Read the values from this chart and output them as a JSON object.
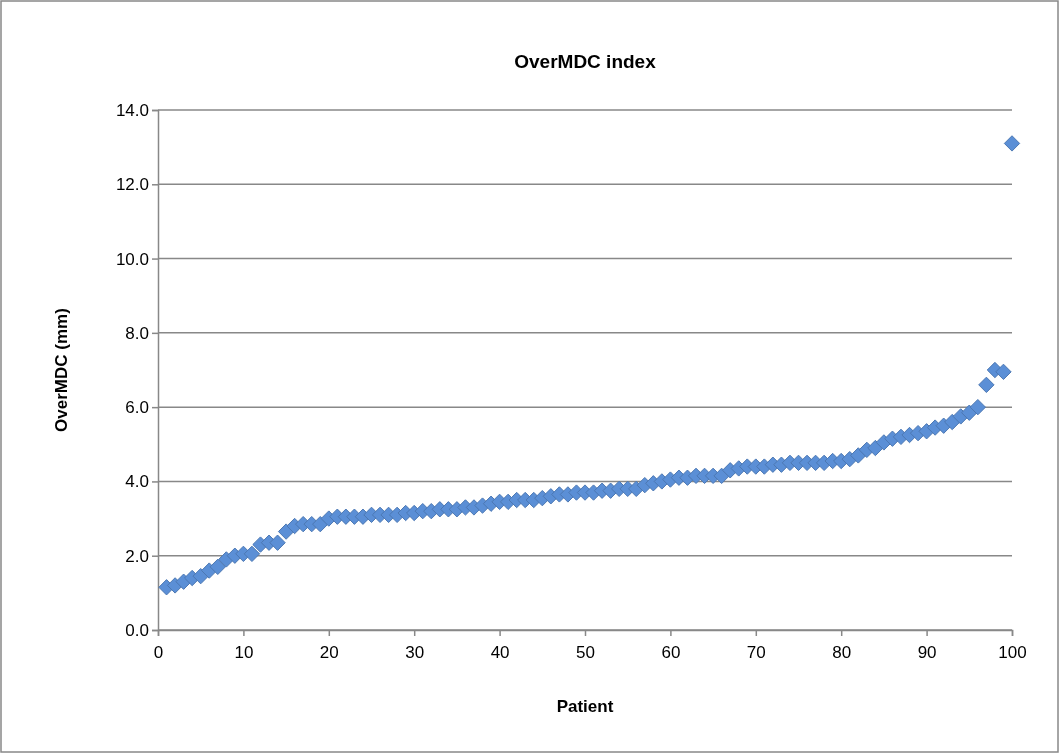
{
  "chart_data": {
    "type": "scatter",
    "title": "OverMDC index",
    "xlabel": "Patient",
    "ylabel": "OverMDC (mm)",
    "x": [
      1,
      2,
      3,
      4,
      5,
      6,
      7,
      8,
      9,
      10,
      11,
      12,
      13,
      14,
      15,
      16,
      17,
      18,
      19,
      20,
      21,
      22,
      23,
      24,
      25,
      26,
      27,
      28,
      29,
      30,
      31,
      32,
      33,
      34,
      35,
      36,
      37,
      38,
      39,
      40,
      41,
      42,
      43,
      44,
      45,
      46,
      47,
      48,
      49,
      50,
      51,
      52,
      53,
      54,
      55,
      56,
      57,
      58,
      59,
      60,
      61,
      62,
      63,
      64,
      65,
      66,
      67,
      68,
      69,
      70,
      71,
      72,
      73,
      74,
      75,
      76,
      77,
      78,
      79,
      80,
      81,
      82,
      83,
      84,
      85,
      86,
      87,
      88,
      89,
      90,
      91,
      92,
      93,
      94,
      95,
      96,
      97,
      98,
      99,
      100
    ],
    "series": [
      {
        "color": "#5b8fd6",
        "values": [
          1.15,
          1.2,
          1.3,
          1.4,
          1.45,
          1.6,
          1.7,
          1.9,
          2.0,
          2.05,
          2.05,
          2.3,
          2.35,
          2.35,
          2.65,
          2.8,
          2.85,
          2.85,
          2.85,
          3.0,
          3.05,
          3.05,
          3.05,
          3.05,
          3.1,
          3.1,
          3.1,
          3.1,
          3.15,
          3.15,
          3.2,
          3.2,
          3.25,
          3.25,
          3.25,
          3.3,
          3.3,
          3.35,
          3.4,
          3.45,
          3.45,
          3.5,
          3.5,
          3.5,
          3.55,
          3.6,
          3.65,
          3.65,
          3.7,
          3.7,
          3.7,
          3.75,
          3.75,
          3.8,
          3.8,
          3.8,
          3.9,
          3.95,
          4.0,
          4.05,
          4.1,
          4.1,
          4.15,
          4.15,
          4.15,
          4.15,
          4.3,
          4.35,
          4.4,
          4.4,
          4.4,
          4.45,
          4.45,
          4.5,
          4.5,
          4.5,
          4.5,
          4.5,
          4.55,
          4.55,
          4.6,
          4.7,
          4.85,
          4.9,
          5.05,
          5.15,
          5.2,
          5.25,
          5.3,
          5.35,
          5.45,
          5.5,
          5.6,
          5.75,
          5.85,
          6.0,
          6.6,
          7.0,
          6.95,
          13.1
        ]
      }
    ],
    "xlim": [
      0,
      100
    ],
    "xticks": [
      0,
      10,
      20,
      30,
      40,
      50,
      60,
      70,
      80,
      90,
      100
    ],
    "ylim": [
      0,
      14
    ],
    "yticks": [
      {
        "value": 0,
        "label": "0.0"
      },
      {
        "value": 2,
        "label": "2.0"
      },
      {
        "value": 4,
        "label": "4.0"
      },
      {
        "value": 6,
        "label": "6.0"
      },
      {
        "value": 8,
        "label": "8.0"
      },
      {
        "value": 10,
        "label": "10.0"
      },
      {
        "value": 12,
        "label": "12.0"
      },
      {
        "value": 14,
        "label": "14.0"
      }
    ],
    "grid": "y",
    "marker": "diamond"
  }
}
